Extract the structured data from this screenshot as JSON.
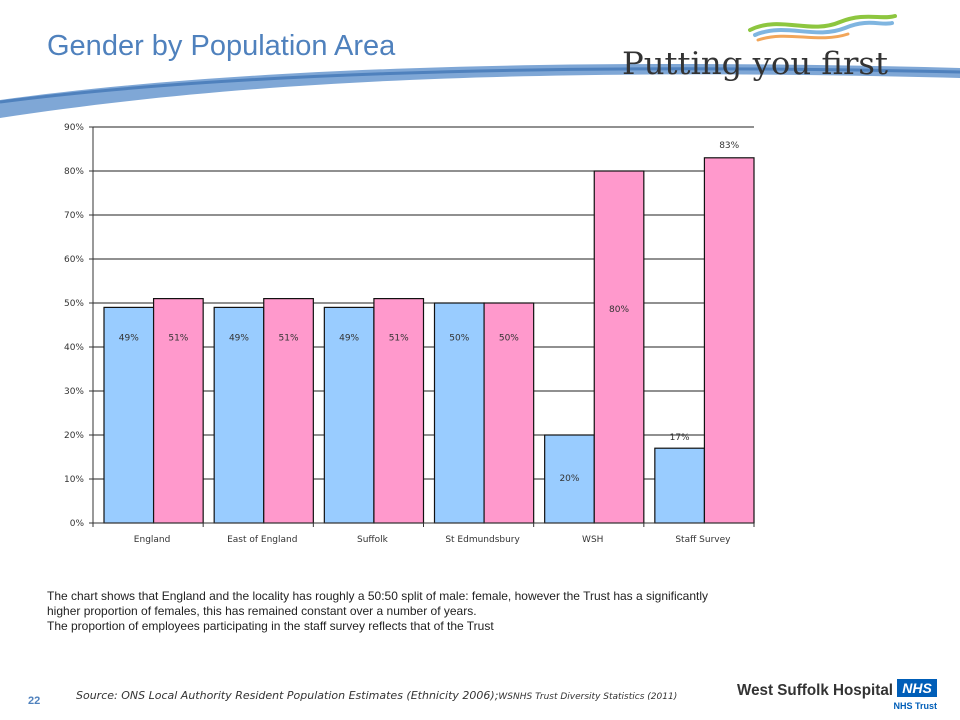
{
  "header": {
    "title": "Gender by Population Area"
  },
  "brand_logo": {
    "text": "Putting you first"
  },
  "chart_data": {
    "type": "bar",
    "categories": [
      "England",
      "East of England",
      "Suffolk",
      "St Edmundsbury",
      "WSH",
      "Staff Survey"
    ],
    "series": [
      {
        "values": [
          49,
          49,
          49,
          50,
          20,
          17
        ],
        "labels": [
          "49%",
          "49%",
          "49%",
          "50%",
          "20%",
          "17%"
        ],
        "color": "#99ccff"
      },
      {
        "values": [
          51,
          51,
          51,
          50,
          80,
          83
        ],
        "labels": [
          "51%",
          "51%",
          "51%",
          "50%",
          "80%",
          "83%"
        ],
        "color": "#ff99cc"
      }
    ],
    "ylim": [
      0,
      90
    ],
    "yticks": [
      "0%",
      "10%",
      "20%",
      "30%",
      "40%",
      "50%",
      "60%",
      "70%",
      "80%",
      "90%"
    ],
    "grid": true,
    "title": "",
    "xlabel": "",
    "ylabel": ""
  },
  "summary": {
    "line1": "The chart shows that England and the locality has roughly a 50:50 split of male: female, however the Trust has a significantly higher proportion of females, this has remained constant over a number of years.",
    "line2": "The proportion of employees participating in the staff survey reflects that of the Trust"
  },
  "footer": {
    "page_number": "22",
    "source_main": "Source: ONS Local Authority Resident Population Estimates (Ethnicity 2006);",
    "source_small": "WSNHS Trust Diversity Statistics (2011)",
    "org_name": "West Suffolk Hospital",
    "org_badge": "NHS",
    "org_sub": "NHS Trust"
  }
}
